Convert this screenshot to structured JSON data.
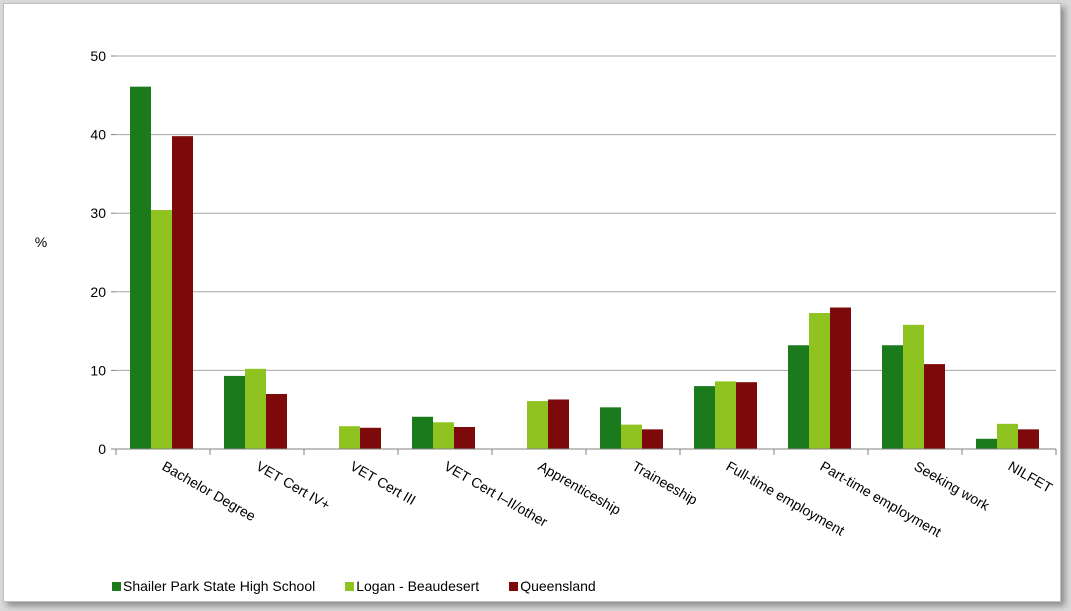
{
  "chart_data": {
    "type": "bar",
    "title": "",
    "xlabel": "",
    "ylabel": "%",
    "ylim": [
      0,
      50
    ],
    "yticks": [
      0,
      10,
      20,
      30,
      40,
      50
    ],
    "grid": true,
    "legend_position": "bottom-left",
    "categories": [
      "Bachelor Degree",
      "VET Cert IV+",
      "VET Cert III",
      "VET Cert I–II/other",
      "Apprenticeship",
      "Traineeship",
      "Full-time employment",
      "Part-time employment",
      "Seeking work",
      "NILFET"
    ],
    "series": [
      {
        "name": "Shailer Park State High School",
        "color": "#1b7a1b",
        "values": [
          46.1,
          9.3,
          0,
          4.1,
          0,
          5.3,
          8.0,
          13.2,
          13.2,
          1.3
        ]
      },
      {
        "name": "Logan - Beaudesert",
        "color": "#8fc31f",
        "values": [
          30.4,
          10.2,
          2.9,
          3.4,
          6.1,
          3.1,
          8.6,
          17.3,
          15.8,
          3.2
        ]
      },
      {
        "name": "Queensland",
        "color": "#7d0a0a",
        "values": [
          39.8,
          7.0,
          2.7,
          2.8,
          6.3,
          2.5,
          8.5,
          18.0,
          10.8,
          2.5
        ]
      }
    ]
  }
}
